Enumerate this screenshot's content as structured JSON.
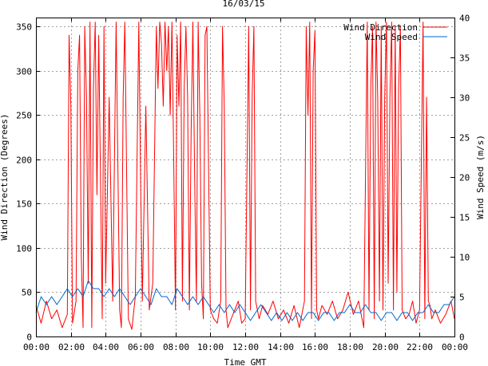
{
  "chart_data": {
    "type": "line",
    "title": "16/03/15",
    "xlabel": "Time GMT",
    "ylabel_left": "Wind Direction (Degrees)",
    "ylabel_right": "Wind Speed (m/s)",
    "x_ticks": [
      "00:00",
      "02:00",
      "04:00",
      "06:00",
      "08:00",
      "10:00",
      "12:00",
      "14:00",
      "16:00",
      "18:00",
      "20:00",
      "22:00",
      "00:00"
    ],
    "xlim_hours": [
      0,
      24
    ],
    "ylim_left": [
      0,
      360
    ],
    "y_ticks_left": [
      "0",
      "50",
      "100",
      "150",
      "200",
      "250",
      "300",
      "350"
    ],
    "ylim_right": [
      0,
      40
    ],
    "y_ticks_right": [
      "0",
      "5",
      "10",
      "15",
      "20",
      "25",
      "30",
      "35",
      "40"
    ],
    "grid": true,
    "legend_position": "top-right",
    "series": [
      {
        "name": "Wind Direction",
        "color": "#ff0000",
        "axis": "left",
        "x_hours": [
          0.0,
          0.3,
          0.6,
          0.9,
          1.2,
          1.5,
          1.8,
          1.9,
          2.0,
          2.1,
          2.3,
          2.4,
          2.5,
          2.6,
          2.7,
          2.8,
          2.9,
          3.0,
          3.1,
          3.2,
          3.3,
          3.4,
          3.5,
          3.6,
          3.8,
          3.9,
          4.0,
          4.2,
          4.4,
          4.6,
          4.8,
          4.9,
          5.0,
          5.1,
          5.3,
          5.5,
          5.7,
          5.9,
          6.0,
          6.1,
          6.3,
          6.5,
          6.7,
          6.9,
          7.0,
          7.1,
          7.2,
          7.3,
          7.4,
          7.5,
          7.6,
          7.7,
          7.8,
          7.9,
          8.0,
          8.1,
          8.2,
          8.3,
          8.4,
          8.5,
          8.6,
          8.7,
          8.8,
          8.9,
          9.0,
          9.1,
          9.2,
          9.3,
          9.4,
          9.5,
          9.6,
          9.7,
          9.8,
          10.0,
          10.2,
          10.4,
          10.6,
          10.7,
          10.8,
          10.9,
          11.0,
          11.2,
          11.4,
          11.6,
          11.8,
          12.0,
          12.2,
          12.3,
          12.4,
          12.5,
          12.6,
          12.8,
          13.0,
          13.3,
          13.6,
          13.9,
          14.2,
          14.5,
          14.8,
          15.1,
          15.4,
          15.5,
          15.6,
          15.7,
          15.8,
          15.9,
          16.0,
          16.1,
          16.2,
          16.4,
          16.7,
          17.0,
          17.3,
          17.6,
          17.9,
          18.2,
          18.5,
          18.8,
          19.0,
          19.1,
          19.2,
          19.3,
          19.4,
          19.5,
          19.6,
          19.7,
          19.8,
          19.9,
          20.0,
          20.1,
          20.2,
          20.3,
          20.4,
          20.5,
          20.6,
          20.7,
          20.8,
          20.9,
          21.0,
          21.2,
          21.4,
          21.6,
          21.8,
          22.0,
          22.2,
          22.3,
          22.4,
          22.5,
          22.6,
          22.7,
          22.9,
          23.2,
          23.5,
          23.8,
          24.0
        ],
        "values": [
          35,
          15,
          40,
          20,
          30,
          10,
          25,
          340,
          260,
          15,
          40,
          300,
          340,
          90,
          10,
          350,
          270,
          60,
          355,
          10,
          280,
          355,
          160,
          340,
          20,
          350,
          60,
          270,
          40,
          355,
          30,
          10,
          270,
          355,
          20,
          8,
          45,
          355,
          180,
          40,
          260,
          30,
          60,
          350,
          280,
          355,
          330,
          260,
          355,
          300,
          350,
          250,
          355,
          200,
          30,
          340,
          260,
          355,
          40,
          280,
          350,
          270,
          30,
          230,
          355,
          180,
          40,
          355,
          250,
          60,
          20,
          340,
          350,
          30,
          20,
          15,
          40,
          350,
          260,
          30,
          10,
          20,
          30,
          40,
          15,
          20,
          350,
          30,
          270,
          350,
          40,
          20,
          35,
          25,
          40,
          20,
          30,
          15,
          35,
          10,
          40,
          350,
          250,
          355,
          20,
          300,
          345,
          30,
          20,
          35,
          25,
          40,
          20,
          30,
          50,
          25,
          40,
          10,
          355,
          30,
          280,
          350,
          20,
          355,
          270,
          40,
          350,
          30,
          270,
          355,
          60,
          270,
          355,
          30,
          350,
          50,
          280,
          350,
          30,
          20,
          25,
          40,
          15,
          30,
          355,
          20,
          270,
          40,
          35,
          20,
          30,
          15,
          25,
          40,
          20
        ],
        "note": "values approximate; the source trace is dense with rapid swings between ~10 and ~355 degrees"
      },
      {
        "name": "Wind Speed",
        "color": "#0066cc",
        "axis": "right",
        "x_hours": [
          0.0,
          0.3,
          0.6,
          0.9,
          1.2,
          1.5,
          1.8,
          2.1,
          2.4,
          2.7,
          3.0,
          3.3,
          3.6,
          3.9,
          4.2,
          4.5,
          4.8,
          5.1,
          5.4,
          5.7,
          6.0,
          6.3,
          6.6,
          6.9,
          7.2,
          7.5,
          7.8,
          8.1,
          8.4,
          8.7,
          9.0,
          9.3,
          9.6,
          9.9,
          10.2,
          10.5,
          10.8,
          11.1,
          11.4,
          11.7,
          12.0,
          12.3,
          12.6,
          12.9,
          13.2,
          13.5,
          13.8,
          14.1,
          14.4,
          14.7,
          15.0,
          15.3,
          15.6,
          15.9,
          16.2,
          16.5,
          16.8,
          17.1,
          17.4,
          17.7,
          18.0,
          18.3,
          18.6,
          18.9,
          19.2,
          19.5,
          19.8,
          20.1,
          20.4,
          20.7,
          21.0,
          21.3,
          21.6,
          21.9,
          22.2,
          22.5,
          22.8,
          23.1,
          23.4,
          23.7,
          24.0
        ],
        "values": [
          3,
          5,
          4,
          5,
          4,
          5,
          6,
          5,
          6,
          5,
          7,
          6,
          6,
          5,
          6,
          5,
          6,
          5,
          4,
          5,
          6,
          5,
          4,
          6,
          5,
          5,
          4,
          6,
          5,
          4,
          5,
          4,
          5,
          4,
          3,
          4,
          3,
          4,
          3,
          4,
          3,
          2,
          3,
          4,
          3,
          2,
          3,
          2,
          3,
          2,
          3,
          2,
          3,
          3,
          2,
          3,
          3,
          2,
          3,
          3,
          4,
          3,
          3,
          4,
          3,
          3,
          2,
          3,
          3,
          2,
          3,
          3,
          2,
          3,
          3,
          4,
          3,
          3,
          4,
          4,
          5
        ]
      }
    ]
  }
}
